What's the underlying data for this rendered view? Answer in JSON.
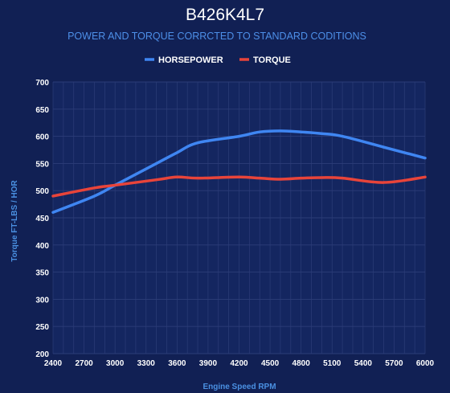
{
  "colors": {
    "background": "#112054",
    "plot_background": "#142660",
    "grid": "#2c3d78",
    "axis_text": "#ffffff",
    "subtitle": "#4d8fe8",
    "axis_title": "#4a90e2",
    "horsepower": "#3f86f2",
    "torque": "#e8443a"
  },
  "chart_data": {
    "type": "line",
    "title": "B426K4L7",
    "subtitle": "POWER AND TORQUE CORRCTED TO STANDARD CODITIONS",
    "xlabel": "Engine Speed RPM",
    "ylabel": "Torque FT-LBS / HOR",
    "legend_placement": "top-center",
    "grid": true,
    "xlim": [
      2400,
      6000
    ],
    "ylim": [
      200,
      700
    ],
    "x_ticks": [
      "2400",
      "2700",
      "3000",
      "3300",
      "3600",
      "3900",
      "4200",
      "4500",
      "4800",
      "5100",
      "5400",
      "5700",
      "6000"
    ],
    "y_ticks": [
      "200",
      "250",
      "300",
      "350",
      "400",
      "450",
      "500",
      "550",
      "600",
      "650",
      "700"
    ],
    "x": [
      2400,
      2800,
      3000,
      3400,
      3600,
      3800,
      4200,
      4400,
      4600,
      4800,
      5000,
      5200,
      5600,
      6000
    ],
    "series": [
      {
        "name": "HORSEPOWER",
        "color_key": "horsepower",
        "values": [
          460,
          490,
          510,
          550,
          570,
          588,
          600,
          608,
          610,
          608,
          605,
          600,
          580,
          560
        ]
      },
      {
        "name": "TORQUE",
        "color_key": "torque",
        "values": [
          490,
          505,
          510,
          520,
          525,
          523,
          525,
          523,
          521,
          523,
          524,
          523,
          515,
          525
        ]
      }
    ]
  }
}
